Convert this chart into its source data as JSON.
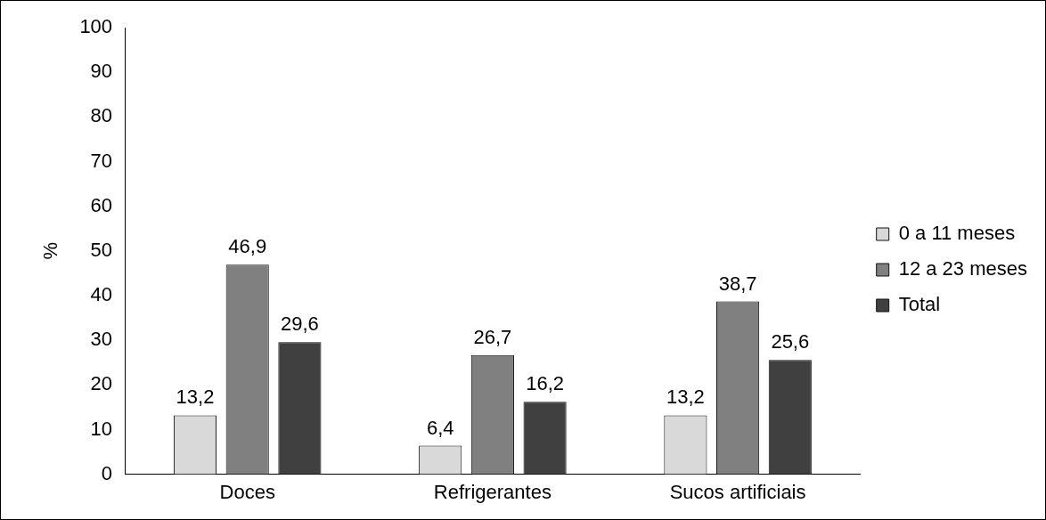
{
  "chart_data": {
    "type": "bar",
    "ylabel": "%",
    "categories": [
      "Doces",
      "Refrigerantes",
      "Sucos artificiais"
    ],
    "series": [
      {
        "name": "0 a 11 meses",
        "color": "#d9d9d9",
        "values": [
          13.2,
          6.4,
          13.2
        ],
        "value_labels": [
          "13,2",
          "6,4",
          "13,2"
        ]
      },
      {
        "name": "12 a 23 meses",
        "color": "#808080",
        "values": [
          46.9,
          26.7,
          38.7
        ],
        "value_labels": [
          "46,9",
          "26,7",
          "38,7"
        ]
      },
      {
        "name": "Total",
        "color": "#404040",
        "values": [
          29.6,
          16.2,
          25.6
        ],
        "value_labels": [
          "29,6",
          "16,2",
          "25,6"
        ]
      }
    ],
    "ylim": [
      0,
      100
    ],
    "yticks": [
      0,
      10,
      20,
      30,
      40,
      50,
      60,
      70,
      80,
      90,
      100
    ],
    "grid": false,
    "legend": "right"
  }
}
